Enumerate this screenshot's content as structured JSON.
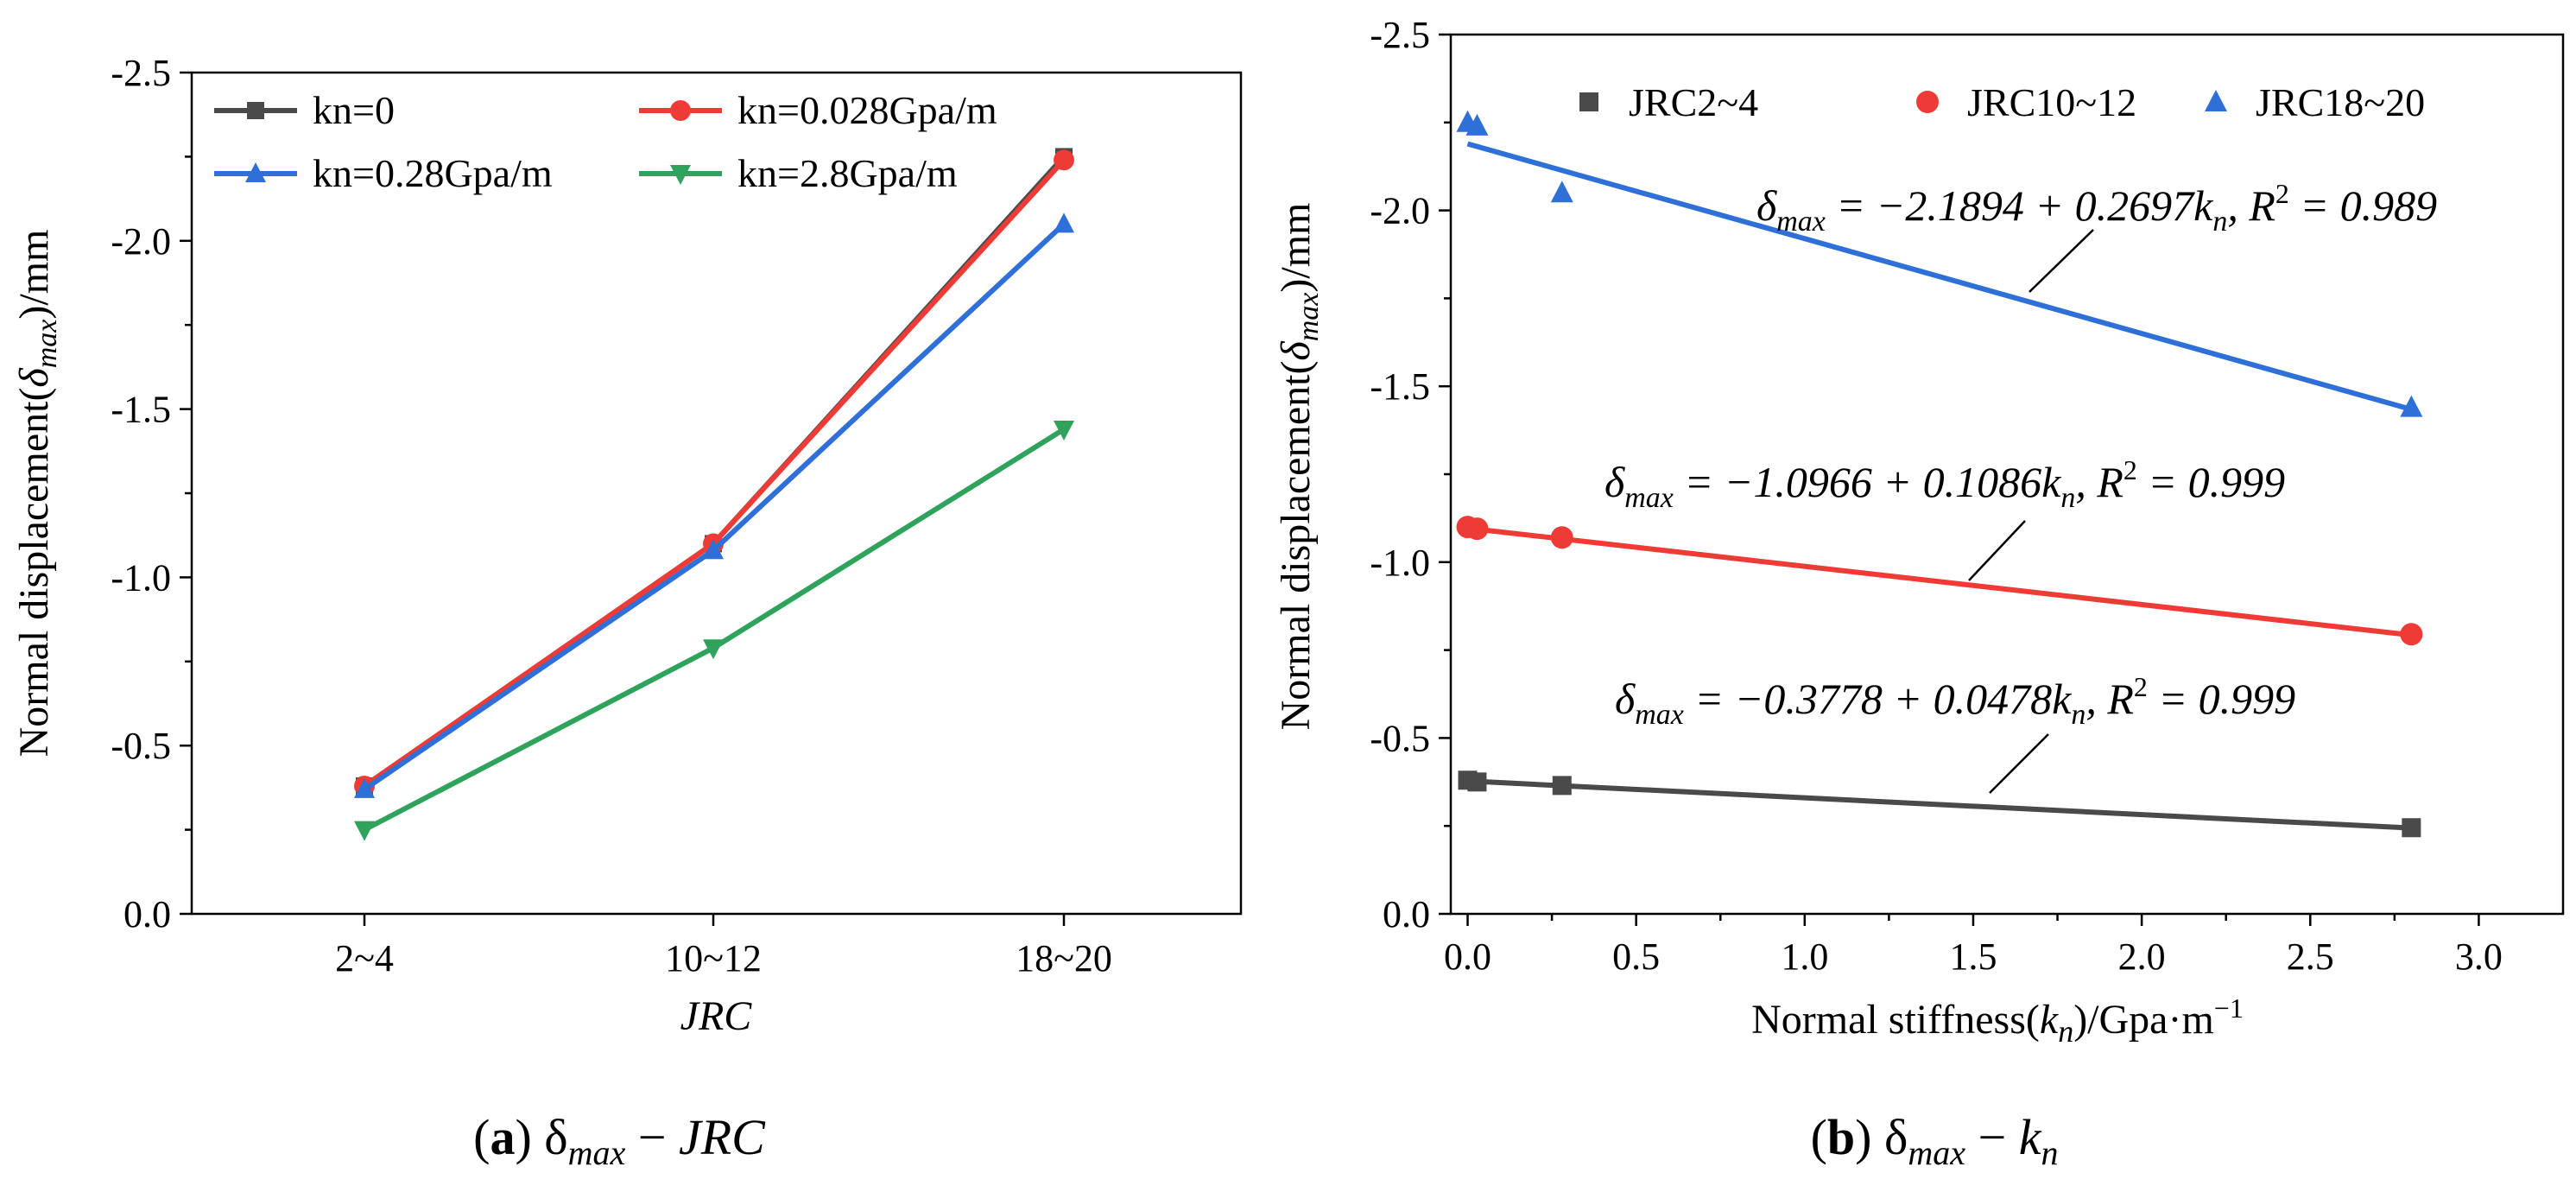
{
  "chart_data": [
    {
      "type": "line",
      "xlabel": "JRC",
      "ylabel": "Normal displacement(δmax)/mm",
      "ylabel_parts": {
        "pre": "Normal displacement(",
        "sym": "δ",
        "sub": "max",
        "post": ")/mm"
      },
      "categories": [
        "2~4",
        "10~12",
        "18~20"
      ],
      "ylim": [
        0.0,
        -2.5
      ],
      "yticks": [
        "-2.5",
        "-2.0",
        "-1.5",
        "-1.0",
        "-0.5",
        "0.0"
      ],
      "legend_position": "top",
      "series": [
        {
          "name": "kn=0",
          "color": "#4a4a4a",
          "marker": "square",
          "values": [
            -0.38,
            -1.1,
            -2.25
          ]
        },
        {
          "name": "kn=0.028Gpa/m",
          "color": "#ef3b36",
          "marker": "circle",
          "values": [
            -0.38,
            -1.1,
            -2.24
          ]
        },
        {
          "name": "kn=0.28Gpa/m",
          "color": "#2f6fd8",
          "marker": "triangle-up",
          "values": [
            -0.37,
            -1.08,
            -2.05
          ]
        },
        {
          "name": "kn=2.8Gpa/m",
          "color": "#2fa35c",
          "marker": "triangle-down",
          "values": [
            -0.25,
            -0.79,
            -1.44
          ]
        }
      ],
      "caption": {
        "label": "(a)",
        "text": "δmax − JRC",
        "sym": "δ",
        "sub": "max",
        "rest": " − JRC"
      }
    },
    {
      "type": "scatter",
      "xlabel": "Normal stiffness(kn)/Gpa·m−1",
      "xlabel_parts": {
        "pre": "Normal stiffness(",
        "k": "k",
        "n": "n",
        "post": ")/Gpa·m",
        "sup": "−1"
      },
      "ylabel": "Normal displacement(δmax)/mm",
      "ylabel_parts": {
        "pre": "Normal displacement(",
        "sym": "δ",
        "sub": "max",
        "post": ")/mm"
      },
      "xlim": [
        -0.05,
        3.25
      ],
      "ylim": [
        0.0,
        -2.5
      ],
      "xticks": [
        "0.0",
        "0.5",
        "1.0",
        "1.5",
        "2.0",
        "2.5",
        "3.0"
      ],
      "yticks": [
        "-2.5",
        "-2.0",
        "-1.5",
        "-1.0",
        "-0.5",
        "0.0"
      ],
      "legend_position": "top",
      "series": [
        {
          "name": "JRC2~4",
          "color": "#4a4a4a",
          "marker": "square",
          "x": [
            0,
            0.028,
            0.28,
            2.8
          ],
          "y": [
            -0.38,
            -0.375,
            -0.365,
            -0.245
          ],
          "fit": {
            "intercept": -0.3778,
            "slope": 0.0478
          },
          "equation": {
            "lhs": "δ",
            "sub": "max",
            "mid": " = −0.3778 + 0.0478k",
            "ksub": "n",
            "r": ", R",
            "sup": "2",
            "tail": " = 0.999"
          }
        },
        {
          "name": "JRC10~12",
          "color": "#ef3b36",
          "marker": "circle",
          "x": [
            0,
            0.028,
            0.28,
            2.8
          ],
          "y": [
            -1.1,
            -1.095,
            -1.07,
            -0.795
          ],
          "fit": {
            "intercept": -1.0966,
            "slope": 0.1086
          },
          "equation": {
            "lhs": "δ",
            "sub": "max",
            "mid": " = −1.0966 + 0.1086k",
            "ksub": "n",
            "r": ", R",
            "sup": "2",
            "tail": " = 0.999"
          }
        },
        {
          "name": "JRC18~20",
          "color": "#2f6fd8",
          "marker": "triangle-up",
          "x": [
            0,
            0.028,
            0.28,
            2.8
          ],
          "y": [
            -2.25,
            -2.24,
            -2.05,
            -1.44
          ],
          "fit": {
            "intercept": -2.1894,
            "slope": 0.2697
          },
          "equation": {
            "lhs": "δ",
            "sub": "max",
            "mid": " = −2.1894 + 0.2697k",
            "ksub": "n",
            "r": ", R",
            "sup": "2",
            "tail": " = 0.989"
          }
        }
      ],
      "caption": {
        "label": "(b)",
        "text": "δmax − kn",
        "sym": "δ",
        "sub": "max",
        "rest": " − k",
        "rest_sub": "n"
      }
    }
  ]
}
